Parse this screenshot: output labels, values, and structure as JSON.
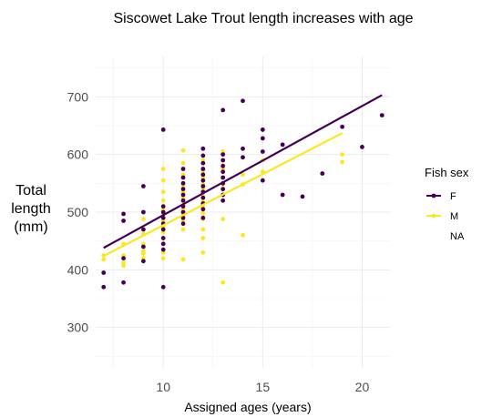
{
  "chart_data": {
    "type": "scatter",
    "title": "Siscowet Lake Trout length increases with age",
    "xlabel": "Assigned ages (years)",
    "ylabel": [
      "Total",
      "length",
      "(mm)"
    ],
    "xlim": [
      6.6,
      21.4
    ],
    "ylim": [
      230,
      770
    ],
    "x_ticks": [
      10,
      15,
      20
    ],
    "y_ticks": [
      300,
      400,
      500,
      600,
      700
    ],
    "grid": true,
    "legend": {
      "title": "Fish sex",
      "position": "right",
      "entries": [
        "F",
        "M",
        "NA"
      ]
    },
    "series": [
      {
        "name": "F",
        "color": "#440154",
        "points": [
          [
            7,
            395
          ],
          [
            7,
            370
          ],
          [
            8,
            497
          ],
          [
            8,
            485
          ],
          [
            8,
            420
          ],
          [
            8,
            378
          ],
          [
            9,
            545
          ],
          [
            9,
            500
          ],
          [
            9,
            470
          ],
          [
            9,
            440
          ],
          [
            9,
            415
          ],
          [
            10,
            643
          ],
          [
            10,
            510
          ],
          [
            10,
            500
          ],
          [
            10,
            490
          ],
          [
            10,
            480
          ],
          [
            10,
            470
          ],
          [
            10,
            455
          ],
          [
            10,
            445
          ],
          [
            10,
            435
          ],
          [
            10,
            370
          ],
          [
            11,
            575
          ],
          [
            11,
            560
          ],
          [
            11,
            550
          ],
          [
            11,
            540
          ],
          [
            11,
            530
          ],
          [
            11,
            520
          ],
          [
            11,
            510
          ],
          [
            11,
            500
          ],
          [
            11,
            490
          ],
          [
            11,
            480
          ],
          [
            12,
            610
          ],
          [
            12,
            598
          ],
          [
            12,
            585
          ],
          [
            12,
            575
          ],
          [
            12,
            565
          ],
          [
            12,
            555
          ],
          [
            12,
            545
          ],
          [
            12,
            535
          ],
          [
            12,
            525
          ],
          [
            12,
            515
          ],
          [
            12,
            505
          ],
          [
            12,
            490
          ],
          [
            13,
            677
          ],
          [
            13,
            600
          ],
          [
            13,
            590
          ],
          [
            13,
            580
          ],
          [
            13,
            570
          ],
          [
            13,
            560
          ],
          [
            13,
            550
          ],
          [
            13,
            540
          ],
          [
            13,
            530
          ],
          [
            13,
            520
          ],
          [
            14,
            693
          ],
          [
            14,
            610
          ],
          [
            14,
            595
          ],
          [
            15,
            643
          ],
          [
            15,
            628
          ],
          [
            15,
            605
          ],
          [
            15,
            555
          ],
          [
            16,
            617
          ],
          [
            16,
            530
          ],
          [
            17,
            527
          ],
          [
            18,
            567
          ],
          [
            19,
            648
          ],
          [
            20,
            613
          ],
          [
            21,
            668
          ]
        ],
        "trend": [
          [
            7,
            438
          ],
          [
            21,
            703
          ]
        ]
      },
      {
        "name": "M",
        "color": "#fde725",
        "points": [
          [
            7,
            425
          ],
          [
            7,
            418
          ],
          [
            8,
            445
          ],
          [
            8,
            425
          ],
          [
            8,
            412
          ],
          [
            8,
            407
          ],
          [
            9,
            488
          ],
          [
            9,
            462
          ],
          [
            9,
            445
          ],
          [
            9,
            432
          ],
          [
            9,
            428
          ],
          [
            9,
            420
          ],
          [
            10,
            575
          ],
          [
            10,
            555
          ],
          [
            10,
            535
          ],
          [
            10,
            520
          ],
          [
            10,
            505
          ],
          [
            10,
            495
          ],
          [
            10,
            485
          ],
          [
            10,
            475
          ],
          [
            10,
            465
          ],
          [
            10,
            455
          ],
          [
            10,
            445
          ],
          [
            10,
            430
          ],
          [
            10,
            420
          ],
          [
            11,
            607
          ],
          [
            11,
            585
          ],
          [
            11,
            565
          ],
          [
            11,
            545
          ],
          [
            11,
            535
          ],
          [
            11,
            525
          ],
          [
            11,
            512
          ],
          [
            11,
            505
          ],
          [
            11,
            495
          ],
          [
            11,
            485
          ],
          [
            11,
            470
          ],
          [
            11,
            418
          ],
          [
            12,
            590
          ],
          [
            12,
            572
          ],
          [
            12,
            560
          ],
          [
            12,
            548
          ],
          [
            12,
            540
          ],
          [
            12,
            528
          ],
          [
            12,
            518
          ],
          [
            12,
            508
          ],
          [
            12,
            498
          ],
          [
            12,
            488
          ],
          [
            12,
            470
          ],
          [
            12,
            455
          ],
          [
            12,
            430
          ],
          [
            13,
            605
          ],
          [
            13,
            590
          ],
          [
            13,
            575
          ],
          [
            13,
            560
          ],
          [
            13,
            548
          ],
          [
            13,
            540
          ],
          [
            13,
            530
          ],
          [
            13,
            520
          ],
          [
            13,
            488
          ],
          [
            13,
            378
          ],
          [
            14,
            565
          ],
          [
            14,
            548
          ],
          [
            14,
            460
          ],
          [
            15,
            590
          ],
          [
            15,
            570
          ],
          [
            19,
            600
          ],
          [
            19,
            587
          ]
        ],
        "trend": [
          [
            7,
            424
          ],
          [
            19,
            637
          ]
        ]
      }
    ]
  }
}
